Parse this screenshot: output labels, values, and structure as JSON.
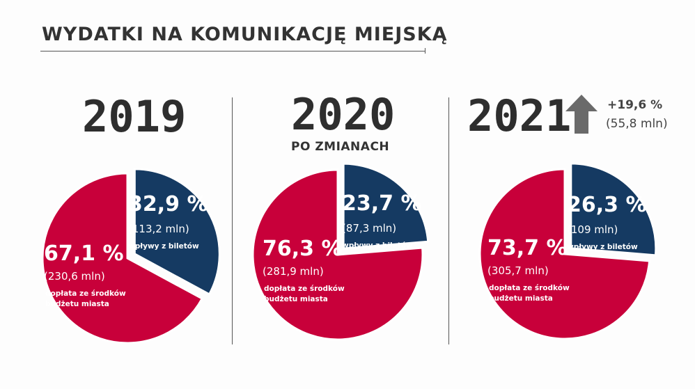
{
  "title": "WYDATKI NA KOMUNIKACJĘ MIEJSKĄ",
  "colors": {
    "subsidy": "#c8003a",
    "tickets": "#153a62",
    "text": "#2e2e2e",
    "arrow": "#6a6a6a"
  },
  "growth": {
    "icon": "up-arrow-icon",
    "pct": "+19,6 %",
    "mln": "(55,8 mln)"
  },
  "chart_data": [
    {
      "type": "pie",
      "title": "2019",
      "subtitle": "",
      "slices": [
        {
          "name": "wpływy z biletów",
          "value": 32.9,
          "pct_label": "32,9 %",
          "amount_label": "(113,2 mln)",
          "desc_lines": [
            "wpływy z biletów"
          ],
          "color": "#153a62"
        },
        {
          "name": "dopłata ze środków budżetu miasta",
          "value": 67.1,
          "pct_label": "67,1 %",
          "amount_label": "(230,6 mln)",
          "desc_lines": [
            "dopłata ze środków",
            "budżetu miasta"
          ],
          "color": "#c8003a"
        }
      ]
    },
    {
      "type": "pie",
      "title": "2020",
      "subtitle": "PO ZMIANACH",
      "slices": [
        {
          "name": "wpływy z biletów",
          "value": 23.7,
          "pct_label": "23,7 %",
          "amount_label": "(87,3 mln)",
          "desc_lines": [
            "wpływy z biletów"
          ],
          "color": "#153a62"
        },
        {
          "name": "dopłata ze środków budżetu miasta",
          "value": 76.3,
          "pct_label": "76,3 %",
          "amount_label": "(281,9 mln)",
          "desc_lines": [
            "dopłata ze środków",
            "budżetu miasta"
          ],
          "color": "#c8003a"
        }
      ]
    },
    {
      "type": "pie",
      "title": "2021",
      "subtitle": "",
      "slices": [
        {
          "name": "wpływy z biletów",
          "value": 26.3,
          "pct_label": "26,3 %",
          "amount_label": "(109 mln)",
          "desc_lines": [
            "wpływy z biletów"
          ],
          "color": "#153a62"
        },
        {
          "name": "dopłata ze środków budżetu miasta",
          "value": 73.7,
          "pct_label": "73,7 %",
          "amount_label": "(305,7 mln)",
          "desc_lines": [
            "dopłata ze środków",
            "budżetu miasta"
          ],
          "color": "#c8003a"
        }
      ]
    }
  ]
}
